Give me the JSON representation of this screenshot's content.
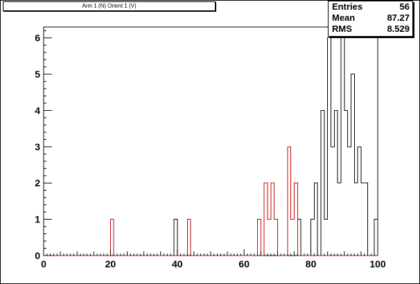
{
  "title": "Arm 1 (N) Orient 1 (V)",
  "stats": [
    {
      "label": "Entries",
      "value": "56"
    },
    {
      "label": "Mean",
      "value": "87.27"
    },
    {
      "label": "RMS",
      "value": "8.529"
    }
  ],
  "chart_data": {
    "type": "histogram",
    "title": "Arm 1 (N) Orient 1 (V)",
    "xlim": [
      0,
      100
    ],
    "ylim": [
      0,
      6.3
    ],
    "bin_width": 1,
    "x_ticks": [
      0,
      20,
      40,
      60,
      80,
      100
    ],
    "y_ticks": [
      0,
      1,
      2,
      3,
      4,
      5,
      6
    ],
    "grid": false,
    "series": [
      {
        "color": "#000000",
        "bins": [
          {
            "x": 39,
            "y": 1
          },
          {
            "x": 76,
            "y": 1
          },
          {
            "x": 80,
            "y": 1
          },
          {
            "x": 81,
            "y": 2
          },
          {
            "x": 83,
            "y": 4
          },
          {
            "x": 84,
            "y": 1
          },
          {
            "x": 85,
            "y": 6
          },
          {
            "x": 86,
            "y": 3
          },
          {
            "x": 87,
            "y": 4
          },
          {
            "x": 88,
            "y": 2
          },
          {
            "x": 89,
            "y": 6
          },
          {
            "x": 90,
            "y": 4
          },
          {
            "x": 91,
            "y": 3
          },
          {
            "x": 92,
            "y": 5
          },
          {
            "x": 93,
            "y": 2
          },
          {
            "x": 94,
            "y": 3
          },
          {
            "x": 95,
            "y": 2
          },
          {
            "x": 96,
            "y": 2
          },
          {
            "x": 97,
            "y": 0
          },
          {
            "x": 99,
            "y": 1
          }
        ]
      },
      {
        "color": "#cc0000",
        "bins": [
          {
            "x": 20,
            "y": 1
          },
          {
            "x": 43,
            "y": 1
          },
          {
            "x": 64,
            "y": 1
          },
          {
            "x": 66,
            "y": 2
          },
          {
            "x": 67,
            "y": 1
          },
          {
            "x": 68,
            "y": 2
          },
          {
            "x": 69,
            "y": 1
          },
          {
            "x": 73,
            "y": 3
          },
          {
            "x": 74,
            "y": 1
          },
          {
            "x": 75,
            "y": 2
          }
        ]
      }
    ]
  }
}
